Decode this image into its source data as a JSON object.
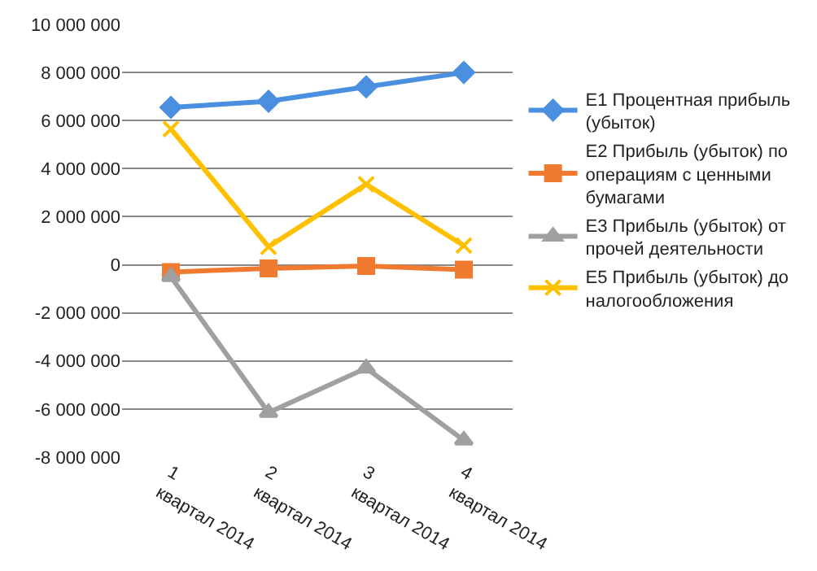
{
  "chart_data": {
    "type": "line",
    "categories": [
      "1 квартал 2014",
      "2 квартал 2014",
      "3 квартал 2014",
      "4 квартал 2014"
    ],
    "series": [
      {
        "name": "Е1 Процентная прибыль (убыток)",
        "color": "#4a8fe0",
        "marker": "diamond",
        "values": [
          6550000,
          6800000,
          7400000,
          8000000
        ]
      },
      {
        "name": "Е2 Прибыль (убыток) по операциям с ценными бумагами",
        "color": "#f07a30",
        "marker": "square",
        "values": [
          -300000,
          -150000,
          -50000,
          -200000
        ]
      },
      {
        "name": "Е3 Прибыль (убыток) от прочей деятельности",
        "color": "#a0a0a0",
        "marker": "triangle",
        "values": [
          -500000,
          -6150000,
          -4300000,
          -7300000
        ]
      },
      {
        "name": "Е5 Прибыль (убыток) до налогообложения",
        "color": "#ffc000",
        "marker": "cross",
        "values": [
          5650000,
          750000,
          3350000,
          800000
        ]
      }
    ],
    "ylim": [
      -8000000,
      10000000
    ],
    "yticks": [
      {
        "value": -8000000,
        "label": "-8 000 000"
      },
      {
        "value": -6000000,
        "label": "-6 000 000"
      },
      {
        "value": -4000000,
        "label": "-4 000 000"
      },
      {
        "value": -2000000,
        "label": "-2 000 000"
      },
      0,
      {
        "value": 2000000,
        "label": "2 000 000"
      },
      {
        "value": 4000000,
        "label": "4 000 000"
      },
      {
        "value": 6000000,
        "label": "6 000 000"
      },
      {
        "value": 8000000,
        "label": "8 000 000"
      },
      {
        "value": 10000000,
        "label": "10 000 000"
      }
    ],
    "grid": "y",
    "legend": "right",
    "line_style": "solid"
  }
}
